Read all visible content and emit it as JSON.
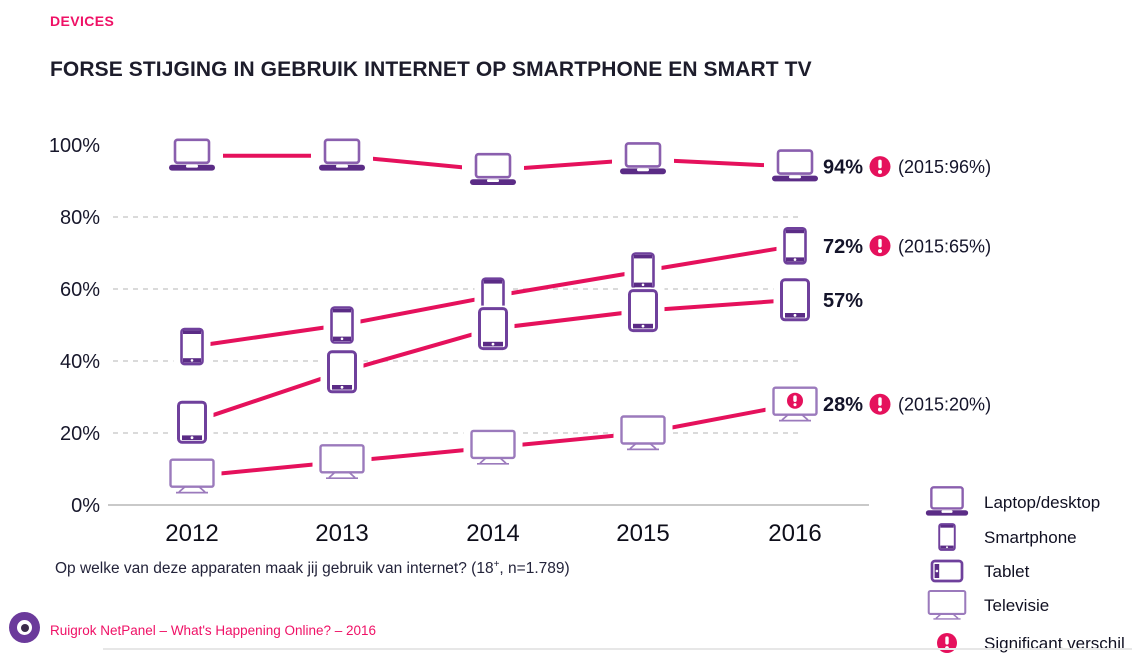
{
  "page": {
    "eyebrow": "DEVICES",
    "title": "FORSE STIJGING IN GEBRUIK INTERNET OP SMARTPHONE EN SMART TV",
    "footnote_prefix": "Op welke van deze apparaten maak jij gebruik van internet? (18",
    "footnote_sup": "+",
    "footnote_suffix": ", n=1.789)",
    "source": "Ruigrok NetPanel – What's Happening Online? – 2016"
  },
  "colors": {
    "pink": "#E5115C",
    "purple": "#6F409C",
    "purple_mid": "#8A5FAE",
    "purple_dark": "#5B2C86",
    "purple_light": "#9B7ABC",
    "grid": "#CDCDCD",
    "axis": "#C9C9C9",
    "text_dark": "#14142A"
  },
  "legend": {
    "items": [
      {
        "icon": "laptop",
        "label": "Laptop/desktop"
      },
      {
        "icon": "smartphone",
        "label": "Smartphone"
      },
      {
        "icon": "tablet-landscape",
        "label": "Tablet"
      },
      {
        "icon": "tv",
        "label": "Televisie"
      },
      {
        "icon": "significant-badge",
        "label": "Significant verschil"
      }
    ]
  },
  "chart_data": {
    "type": "line",
    "title": "Forse stijging in gebruik internet op smartphone en smart tv",
    "x": [
      "2012",
      "2013",
      "2014",
      "2015",
      "2016"
    ],
    "ylim": [
      0,
      100
    ],
    "yticks": [
      0,
      20,
      40,
      60,
      80,
      100
    ],
    "grid": "dashed horizontal gridlines at 20/40/60/80, solid baseline at 0",
    "legend_position": "bottom-right",
    "series": [
      {
        "name": "Laptop/desktop",
        "icon": "laptop",
        "values": [
          97,
          97,
          93,
          96,
          94
        ],
        "end_label": "94%",
        "significant": true,
        "significance_note": "(2015:96%)"
      },
      {
        "name": "Smartphone",
        "icon": "smartphone",
        "values": [
          44,
          50,
          58,
          65,
          72
        ],
        "end_label": "72%",
        "significant": true,
        "significance_note": "(2015:65%)"
      },
      {
        "name": "Tablet",
        "icon": "tablet",
        "values": [
          23,
          37,
          49,
          54,
          57
        ],
        "end_label": "57%",
        "significant": false,
        "significance_note": ""
      },
      {
        "name": "Televisie",
        "icon": "tv",
        "values": [
          8,
          12,
          16,
          20,
          28
        ],
        "end_label": "28%",
        "significant": true,
        "significance_note": "(2015:20%)",
        "badge_on_last_point": true
      }
    ]
  }
}
